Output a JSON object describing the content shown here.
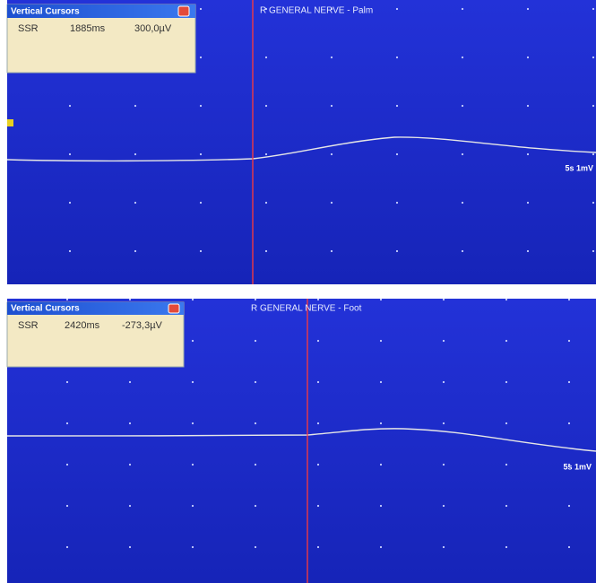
{
  "panels": [
    {
      "window_title": "Vertical Cursors",
      "measure": "SSR",
      "latency": "1885ms",
      "amplitude": "300,0µV",
      "channel": "R GENERAL NERVE - Palm",
      "scale": "5s 1mV"
    },
    {
      "window_title": "Vertical Cursors",
      "measure": "SSR",
      "latency": "2420ms",
      "amplitude": "-273,3µV",
      "channel": "R GENERAL NERVE - Foot",
      "scale": "5s 1mV"
    }
  ]
}
